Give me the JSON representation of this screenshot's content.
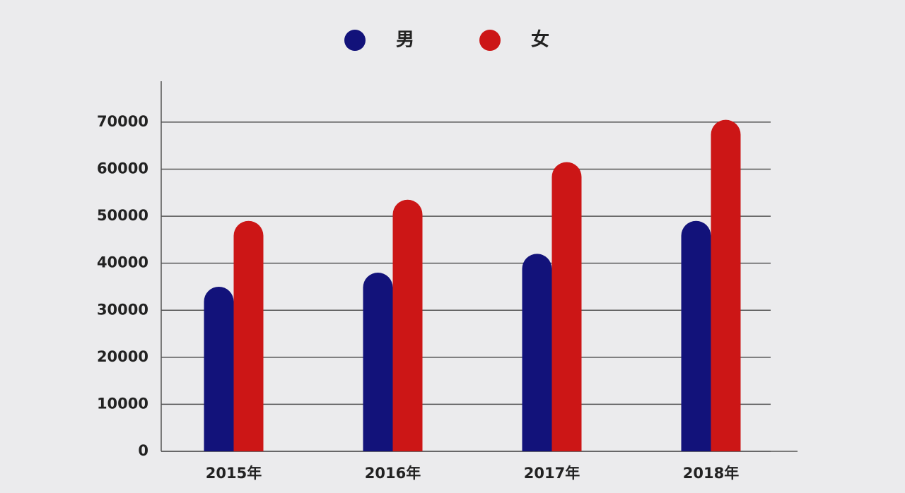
{
  "chart_data": {
    "type": "bar",
    "categories": [
      "2015年",
      "2016年",
      "2017年",
      "2018年"
    ],
    "series": [
      {
        "name": "男",
        "color": "#12127a",
        "values": [
          35000,
          38000,
          42000,
          49000
        ]
      },
      {
        "name": "女",
        "color": "#cc1616",
        "values": [
          49000,
          53500,
          61500,
          70500
        ]
      }
    ],
    "ylim": [
      0,
      78700
    ],
    "yticks": [
      0,
      10000,
      20000,
      30000,
      40000,
      50000,
      60000,
      70000
    ],
    "grid": true,
    "legend": "top"
  }
}
